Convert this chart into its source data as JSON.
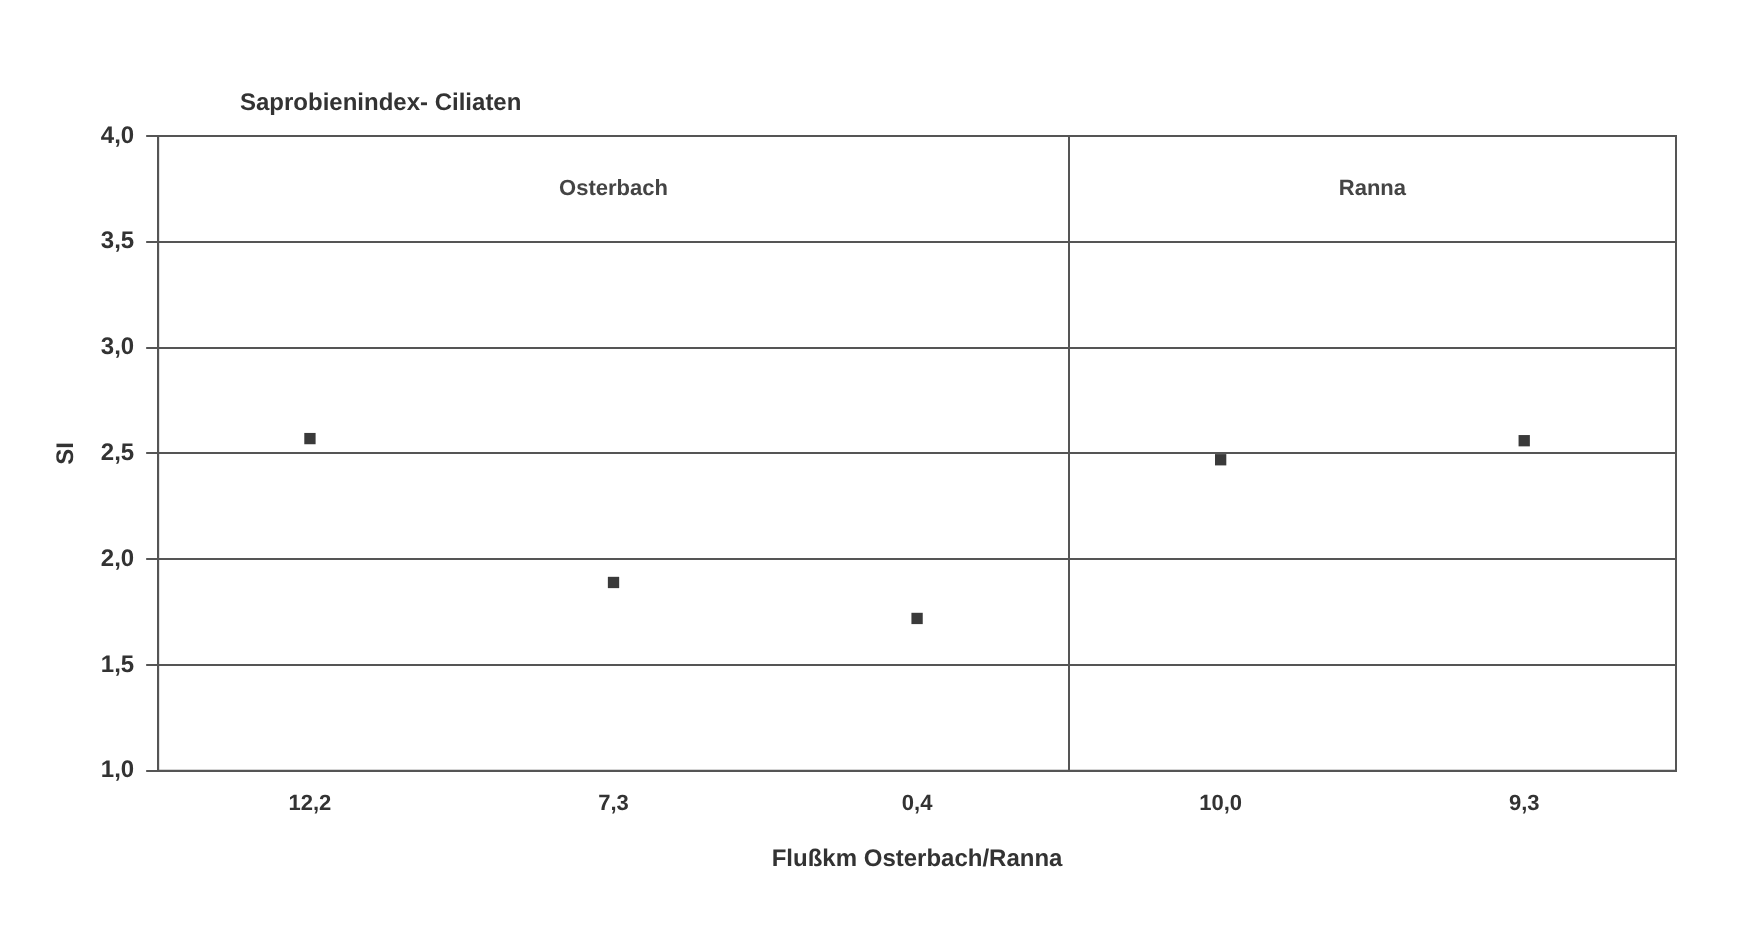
{
  "chart_data": {
    "type": "scatter",
    "title": "Saprobienindex- Ciliaten",
    "xlabel": "Flußkm Osterbach/Ranna",
    "ylabel": "SI",
    "categories": [
      "12,2",
      "7,3",
      "0,4",
      "10,0",
      "9,3"
    ],
    "series": [
      {
        "color": "#3a3a3a",
        "values": [
          2.57,
          1.89,
          1.72,
          2.47,
          2.56
        ]
      }
    ],
    "ylim": [
      1,
      4
    ],
    "yticks": [
      {
        "value": 1,
        "label": "1,0"
      },
      {
        "value": 1.5,
        "label": "1,5"
      },
      {
        "value": 2,
        "label": "2,0"
      },
      {
        "value": 2.5,
        "label": "2,5"
      },
      {
        "value": 3,
        "label": "3,0"
      },
      {
        "value": 3.5,
        "label": "3,5"
      },
      {
        "value": 4,
        "label": "4,0"
      }
    ],
    "annotations": [
      "Osterbach",
      "Ranna"
    ],
    "grid": "y",
    "legend": false,
    "marker": "square"
  }
}
